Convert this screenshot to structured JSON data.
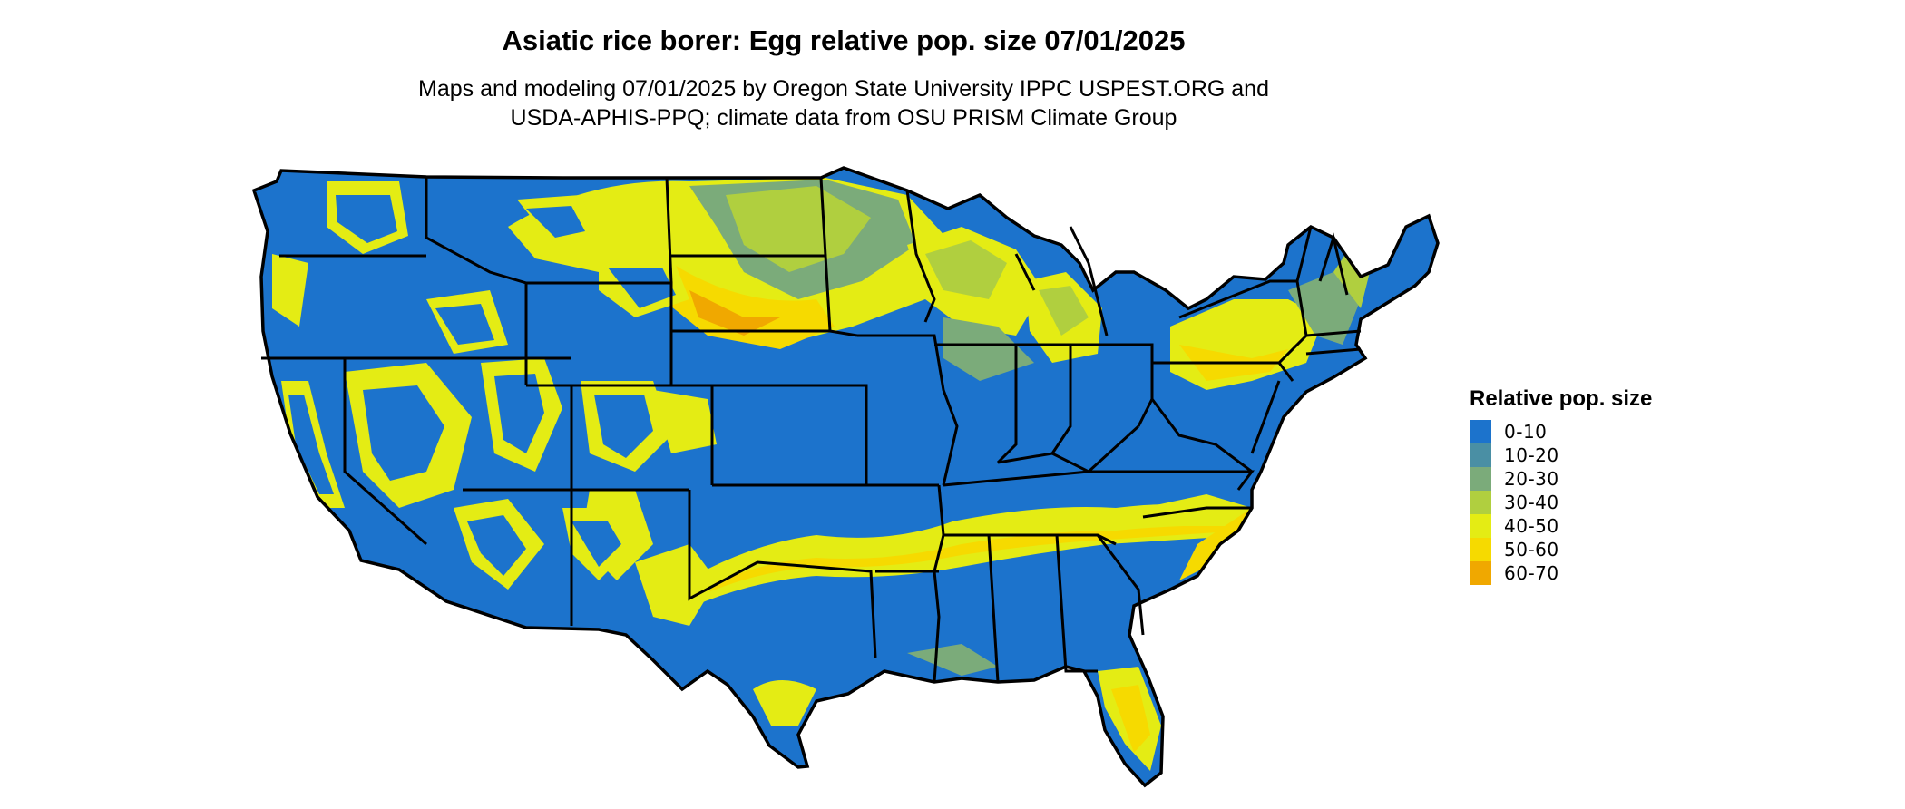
{
  "title": "Asiatic rice borer: Egg relative pop. size 07/01/2025",
  "subtitle_line1": "Maps and modeling 07/01/2025 by Oregon State University IPPC USPEST.ORG and",
  "subtitle_line2": "USDA-APHIS-PPQ; climate data from OSU PRISM Climate Group",
  "legend": {
    "title": "Relative pop. size",
    "items": [
      {
        "label": "0-10",
        "color": "#1c73cc"
      },
      {
        "label": "10-20",
        "color": "#4a8fa4"
      },
      {
        "label": "20-30",
        "color": "#7bab7a"
      },
      {
        "label": "30-40",
        "color": "#b0cf3f"
      },
      {
        "label": "40-50",
        "color": "#e4ec14"
      },
      {
        "label": "50-60",
        "color": "#f6da00"
      },
      {
        "label": "60-70",
        "color": "#f0a800"
      }
    ]
  }
}
